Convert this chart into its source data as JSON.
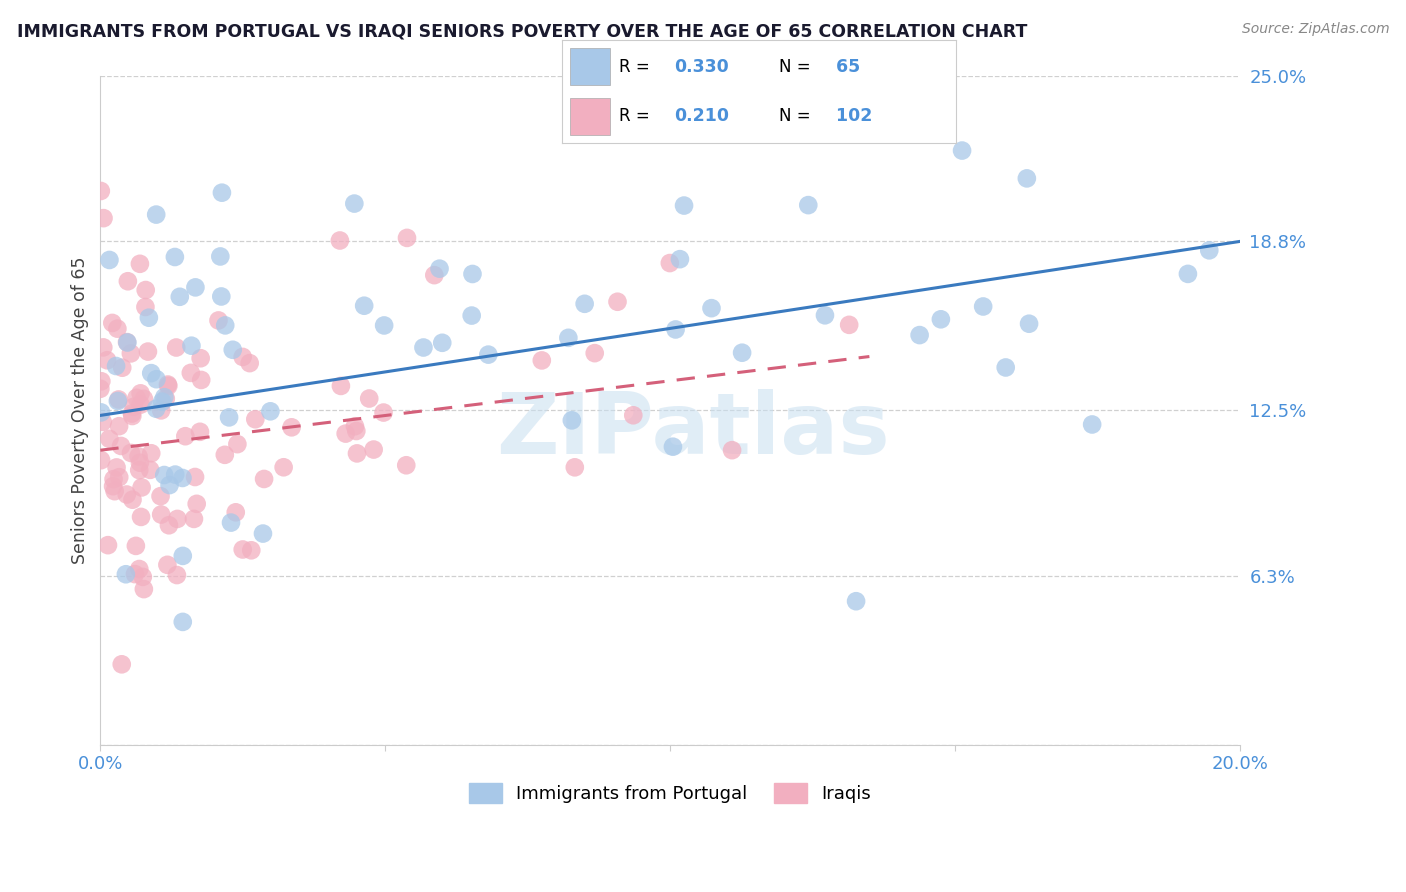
{
  "title": "IMMIGRANTS FROM PORTUGAL VS IRAQI SENIORS POVERTY OVER THE AGE OF 65 CORRELATION CHART",
  "source": "Source: ZipAtlas.com",
  "ylabel": "Seniors Poverty Over the Age of 65",
  "legend_label1": "Immigrants from Portugal",
  "legend_label2": "Iraqis",
  "R1": 0.33,
  "N1": 65,
  "R2": 0.21,
  "N2": 102,
  "xlim": [
    0.0,
    0.2
  ],
  "ylim": [
    0.0,
    0.25
  ],
  "color1": "#a8c8e8",
  "color2": "#f2afc0",
  "line_color1": "#3a7abf",
  "line_color2": "#d4607a",
  "watermark": "ZIPatlas",
  "background_color": "#ffffff",
  "axis_color": "#4a90d9",
  "seed": 12345
}
